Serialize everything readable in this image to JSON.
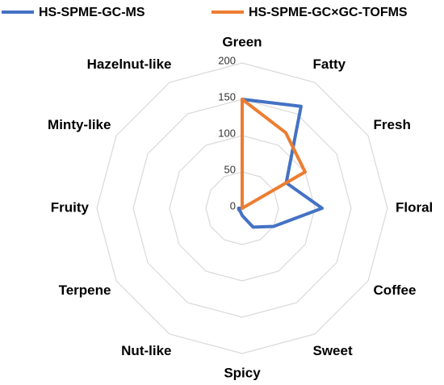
{
  "chart_data": {
    "type": "radar",
    "categories": [
      "Green",
      "Fatty",
      "Fresh",
      "Floral",
      "Coffee",
      "Sweet",
      "Spicy",
      "Nut-like",
      "Terpene",
      "Fruity",
      "Minty-like",
      "Hazelnut-like"
    ],
    "series": [
      {
        "name": "HS-SPME-GC-MS",
        "color": "#4472c4",
        "values": [
          150,
          162,
          70,
          110,
          50,
          30,
          10,
          5,
          5,
          5,
          0,
          0
        ]
      },
      {
        "name": "HS-SPME-GC×GC-TOFMS",
        "color": "#ed7d31",
        "values": [
          150,
          120,
          100,
          0,
          0,
          0,
          0,
          0,
          0,
          0,
          0,
          0
        ]
      }
    ],
    "ylim": [
      0,
      200
    ],
    "yticks": [
      0,
      50,
      100,
      150,
      200
    ],
    "grid": true
  }
}
